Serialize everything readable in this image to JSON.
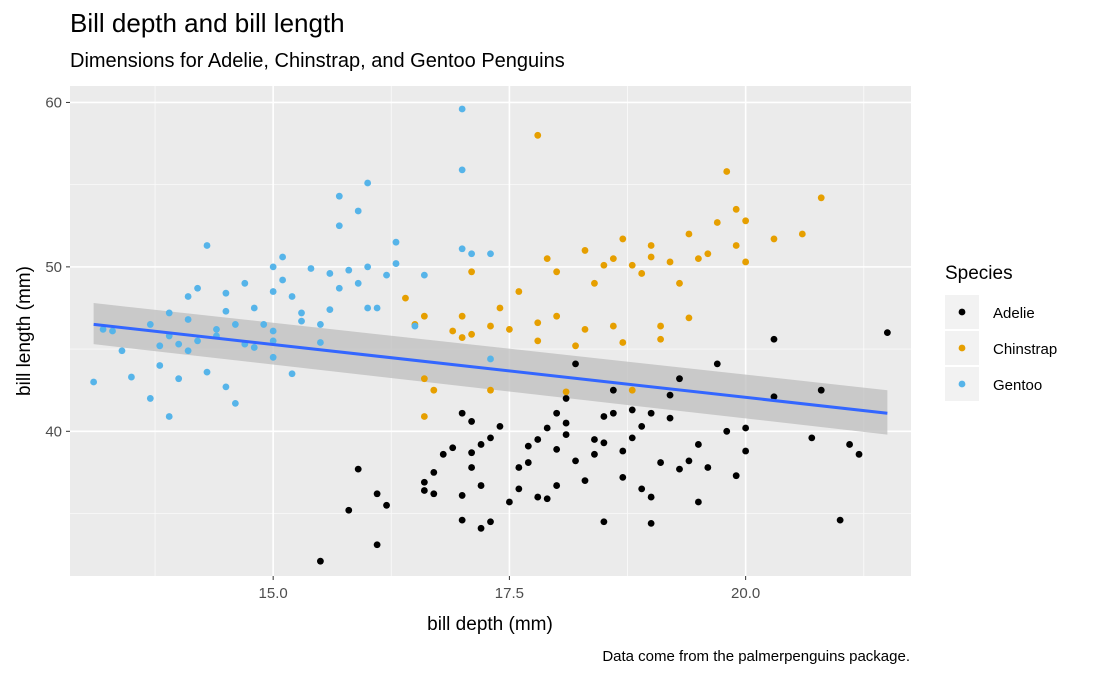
{
  "chart_data": {
    "type": "scatter",
    "title": "Bill depth and bill length",
    "subtitle": "Dimensions for Adelie, Chinstrap, and Gentoo Penguins",
    "xlabel": "bill depth (mm)",
    "ylabel": "bill length (mm)",
    "caption": "Data come from the palmerpenguins package.",
    "xlim": [
      12.85,
      21.75
    ],
    "ylim": [
      31.2,
      61.0
    ],
    "x_ticks": [
      15.0,
      17.5,
      20.0
    ],
    "x_tick_labels": [
      "15.0",
      "17.5",
      "20.0"
    ],
    "y_ticks": [
      40,
      50,
      60
    ],
    "y_tick_labels": [
      "40",
      "50",
      "60"
    ],
    "grid": true,
    "legend": {
      "title": "Species",
      "position": "right"
    },
    "series": [
      {
        "name": "Adelie",
        "color": "#000000",
        "points": [
          [
            15.5,
            32.1
          ],
          [
            16.1,
            33.1
          ],
          [
            15.9,
            37.7
          ],
          [
            16.2,
            35.5
          ],
          [
            15.8,
            35.2
          ],
          [
            16.1,
            36.2
          ],
          [
            16.6,
            36.4
          ],
          [
            16.6,
            36.9
          ],
          [
            16.7,
            37.5
          ],
          [
            16.8,
            38.6
          ],
          [
            17.0,
            34.6
          ],
          [
            17.2,
            34.1
          ],
          [
            17.3,
            34.5
          ],
          [
            17.0,
            36.1
          ],
          [
            17.2,
            36.7
          ],
          [
            17.1,
            37.8
          ],
          [
            17.1,
            38.7
          ],
          [
            17.2,
            39.2
          ],
          [
            17.1,
            40.6
          ],
          [
            17.3,
            39.6
          ],
          [
            17.4,
            40.3
          ],
          [
            17.5,
            35.7
          ],
          [
            17.6,
            36.5
          ],
          [
            17.8,
            36.0
          ],
          [
            17.9,
            35.9
          ],
          [
            18.0,
            36.7
          ],
          [
            17.7,
            38.1
          ],
          [
            17.7,
            39.1
          ],
          [
            17.8,
            39.5
          ],
          [
            17.9,
            40.2
          ],
          [
            18.0,
            38.9
          ],
          [
            18.1,
            39.8
          ],
          [
            18.1,
            40.5
          ],
          [
            18.0,
            41.1
          ],
          [
            18.1,
            42.0
          ],
          [
            18.2,
            44.1
          ],
          [
            18.3,
            37.0
          ],
          [
            18.4,
            38.6
          ],
          [
            18.5,
            39.3
          ],
          [
            18.5,
            40.9
          ],
          [
            18.6,
            41.1
          ],
          [
            18.6,
            42.5
          ],
          [
            18.7,
            37.2
          ],
          [
            18.7,
            38.8
          ],
          [
            18.8,
            39.6
          ],
          [
            18.8,
            41.3
          ],
          [
            18.9,
            40.3
          ],
          [
            19.0,
            34.4
          ],
          [
            19.0,
            36.0
          ],
          [
            19.0,
            41.1
          ],
          [
            19.1,
            38.1
          ],
          [
            19.2,
            40.8
          ],
          [
            19.2,
            42.2
          ],
          [
            19.3,
            37.7
          ],
          [
            19.4,
            38.2
          ],
          [
            19.5,
            35.7
          ],
          [
            19.5,
            39.2
          ],
          [
            19.6,
            37.8
          ],
          [
            19.7,
            44.1
          ],
          [
            19.9,
            37.3
          ],
          [
            20.0,
            38.8
          ],
          [
            20.0,
            40.2
          ],
          [
            20.3,
            45.6
          ],
          [
            20.3,
            42.1
          ],
          [
            20.7,
            39.6
          ],
          [
            20.8,
            42.5
          ],
          [
            21.0,
            34.6
          ],
          [
            21.1,
            39.2
          ],
          [
            21.2,
            38.6
          ],
          [
            21.5,
            46.0
          ],
          [
            16.7,
            36.2
          ],
          [
            16.9,
            39.0
          ],
          [
            17.0,
            41.1
          ],
          [
            17.6,
            37.8
          ],
          [
            18.2,
            38.2
          ],
          [
            18.4,
            39.5
          ],
          [
            18.5,
            34.5
          ],
          [
            18.9,
            36.5
          ],
          [
            19.3,
            43.2
          ],
          [
            19.8,
            40.0
          ]
        ]
      },
      {
        "name": "Chinstrap",
        "color": "#e69f00",
        "points": [
          [
            16.4,
            48.1
          ],
          [
            16.5,
            46.5
          ],
          [
            16.6,
            43.2
          ],
          [
            16.6,
            47.0
          ],
          [
            16.7,
            42.5
          ],
          [
            16.9,
            46.1
          ],
          [
            17.0,
            45.7
          ],
          [
            17.0,
            47.0
          ],
          [
            17.1,
            45.9
          ],
          [
            17.1,
            49.7
          ],
          [
            17.3,
            46.4
          ],
          [
            17.3,
            42.5
          ],
          [
            17.4,
            47.5
          ],
          [
            17.5,
            46.2
          ],
          [
            17.6,
            48.5
          ],
          [
            17.8,
            45.5
          ],
          [
            17.8,
            46.6
          ],
          [
            17.8,
            58.0
          ],
          [
            17.9,
            50.5
          ],
          [
            18.0,
            47.0
          ],
          [
            18.0,
            49.7
          ],
          [
            18.1,
            42.4
          ],
          [
            18.2,
            45.2
          ],
          [
            18.3,
            51.0
          ],
          [
            18.3,
            46.2
          ],
          [
            18.4,
            49.0
          ],
          [
            18.5,
            50.1
          ],
          [
            18.6,
            46.4
          ],
          [
            18.6,
            50.5
          ],
          [
            18.7,
            45.4
          ],
          [
            18.7,
            51.7
          ],
          [
            18.8,
            50.1
          ],
          [
            18.9,
            49.6
          ],
          [
            19.0,
            51.3
          ],
          [
            19.0,
            50.6
          ],
          [
            19.1,
            45.6
          ],
          [
            19.2,
            50.3
          ],
          [
            19.3,
            49.0
          ],
          [
            19.4,
            52.0
          ],
          [
            19.5,
            50.5
          ],
          [
            19.6,
            50.8
          ],
          [
            19.7,
            52.7
          ],
          [
            19.8,
            55.8
          ],
          [
            19.9,
            51.3
          ],
          [
            20.0,
            50.3
          ],
          [
            20.0,
            52.8
          ],
          [
            20.3,
            51.7
          ],
          [
            20.6,
            52.0
          ],
          [
            20.8,
            54.2
          ],
          [
            19.4,
            46.9
          ],
          [
            16.6,
            40.9
          ],
          [
            18.8,
            42.5
          ],
          [
            19.9,
            53.5
          ],
          [
            19.1,
            46.4
          ]
        ]
      },
      {
        "name": "Gentoo",
        "color": "#56b4e9",
        "points": [
          [
            13.1,
            43.0
          ],
          [
            13.2,
            46.2
          ],
          [
            13.4,
            44.9
          ],
          [
            13.5,
            43.3
          ],
          [
            13.7,
            42.0
          ],
          [
            13.7,
            46.5
          ],
          [
            13.8,
            44.0
          ],
          [
            13.9,
            40.9
          ],
          [
            13.9,
            47.2
          ],
          [
            14.0,
            45.3
          ],
          [
            14.1,
            46.8
          ],
          [
            14.2,
            48.7
          ],
          [
            14.3,
            51.3
          ],
          [
            14.3,
            43.6
          ],
          [
            14.4,
            46.2
          ],
          [
            14.5,
            47.3
          ],
          [
            14.5,
            42.7
          ],
          [
            14.6,
            46.5
          ],
          [
            14.7,
            49.0
          ],
          [
            14.8,
            45.1
          ],
          [
            15.0,
            44.5
          ],
          [
            15.0,
            48.5
          ],
          [
            15.0,
            50.0
          ],
          [
            15.1,
            49.2
          ],
          [
            15.2,
            48.2
          ],
          [
            15.3,
            46.7
          ],
          [
            15.4,
            49.9
          ],
          [
            15.5,
            46.5
          ],
          [
            15.6,
            47.4
          ],
          [
            15.7,
            48.7
          ],
          [
            15.7,
            54.3
          ],
          [
            15.8,
            49.8
          ],
          [
            15.9,
            49.0
          ],
          [
            16.0,
            55.1
          ],
          [
            16.0,
            50.0
          ],
          [
            16.1,
            47.5
          ],
          [
            16.2,
            49.5
          ],
          [
            16.3,
            51.5
          ],
          [
            16.5,
            46.4
          ],
          [
            16.6,
            49.5
          ],
          [
            17.0,
            59.6
          ],
          [
            17.0,
            55.9
          ],
          [
            17.0,
            51.1
          ],
          [
            17.1,
            50.8
          ],
          [
            17.3,
            44.4
          ],
          [
            17.3,
            50.8
          ],
          [
            13.8,
            45.2
          ],
          [
            14.0,
            43.2
          ],
          [
            14.4,
            45.8
          ],
          [
            14.9,
            46.5
          ],
          [
            15.0,
            45.5
          ],
          [
            15.1,
            50.6
          ],
          [
            15.2,
            43.5
          ],
          [
            15.7,
            52.5
          ],
          [
            15.9,
            53.4
          ],
          [
            14.2,
            45.5
          ],
          [
            14.5,
            48.4
          ],
          [
            14.8,
            47.5
          ],
          [
            15.5,
            45.4
          ],
          [
            15.3,
            47.2
          ],
          [
            14.6,
            41.7
          ],
          [
            16.0,
            47.5
          ],
          [
            13.9,
            45.8
          ],
          [
            14.1,
            48.2
          ],
          [
            15.6,
            49.6
          ],
          [
            13.3,
            46.1
          ],
          [
            16.3,
            50.2
          ],
          [
            14.7,
            45.3
          ],
          [
            15.0,
            46.1
          ],
          [
            14.1,
            44.9
          ]
        ]
      }
    ],
    "trend_line": {
      "color": "#3366ff",
      "x": [
        13.1,
        21.5
      ],
      "y": [
        46.5,
        41.1
      ],
      "band_lower": [
        45.3,
        39.8
      ],
      "band_upper": [
        47.8,
        42.5
      ],
      "band_color": "#bdbdbd"
    }
  }
}
